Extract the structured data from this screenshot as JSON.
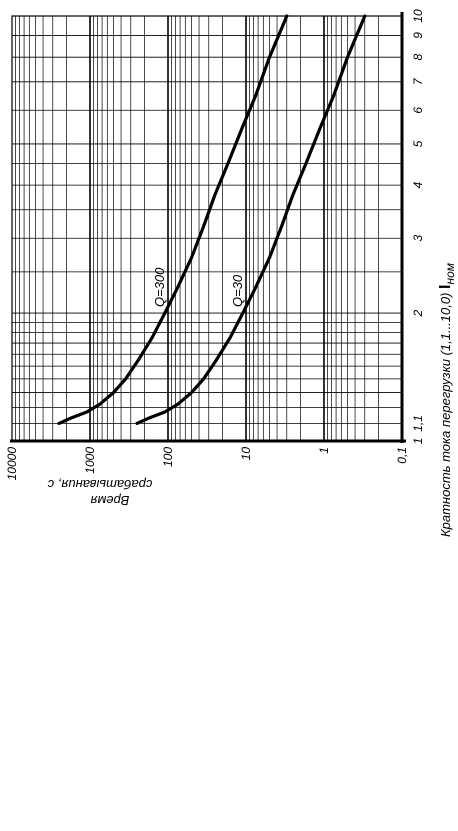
{
  "chart_data": {
    "type": "line",
    "orientation": "rotated-90",
    "xlabel": "Кратность тока перегрузки (1,1...10,0)",
    "xlabel_symbol": "I",
    "xlabel_subscript": "ном",
    "ylabel_line1": "Время",
    "ylabel_line2": "срабатывания, с",
    "x_scale": "log",
    "y_scale": "log",
    "xlim": [
      1,
      10
    ],
    "ylim": [
      0.1,
      10000
    ],
    "x_ticks": [
      "1",
      "1,1",
      "2",
      "3",
      "4",
      "5",
      "6",
      "7",
      "8",
      "9",
      "10"
    ],
    "y_ticks": [
      "10000",
      "1000",
      "100",
      "10",
      "1",
      "0,1"
    ],
    "grid": true,
    "series": [
      {
        "name": "Q=300",
        "x": [
          1.1,
          1.13,
          1.17,
          1.22,
          1.3,
          1.4,
          1.55,
          1.75,
          2.0,
          2.3,
          2.7,
          3.2,
          3.8,
          4.5,
          5.5,
          6.5,
          8.0,
          10.0
        ],
        "y": [
          2500,
          1800,
          1100,
          750,
          500,
          350,
          240,
          160,
          110,
          75,
          50,
          35,
          25,
          17,
          11,
          7.5,
          5,
          3
        ]
      },
      {
        "name": "Q=30",
        "x": [
          1.1,
          1.13,
          1.17,
          1.22,
          1.3,
          1.4,
          1.55,
          1.75,
          2.0,
          2.3,
          2.7,
          3.2,
          3.8,
          4.5,
          5.5,
          6.5,
          8.0,
          10.0
        ],
        "y": [
          250,
          180,
          110,
          75,
          50,
          35,
          24,
          16,
          11,
          7.5,
          5,
          3.5,
          2.5,
          1.7,
          1.1,
          0.75,
          0.5,
          0.3
        ]
      }
    ]
  }
}
